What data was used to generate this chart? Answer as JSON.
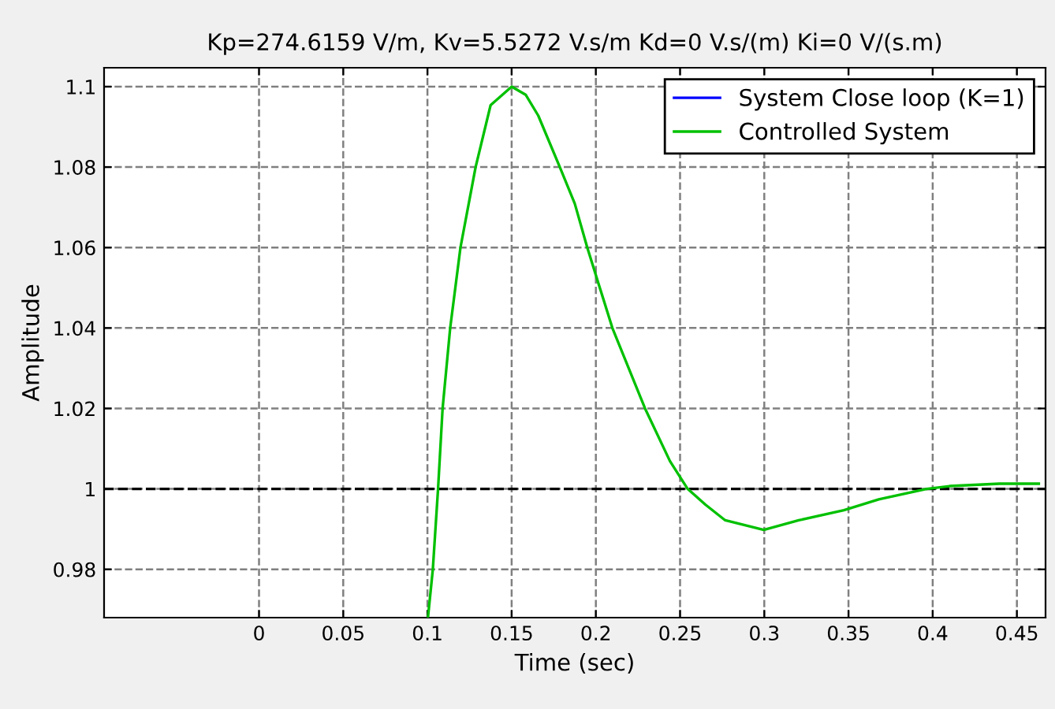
{
  "chart_data": {
    "type": "line",
    "title": "Kp=274.6159 V/m, Kv=5.5272 V.s/m Kd=0 V.s/(m) Ki=0 V/(s.m)",
    "xlabel": "Time (sec)",
    "ylabel": "Amplitude",
    "xlim": [
      -0.092,
      0.467
    ],
    "ylim": [
      0.968,
      1.1047
    ],
    "xticks": [
      0,
      0.05,
      0.1,
      0.15,
      0.2,
      0.25,
      0.3,
      0.35,
      0.4,
      0.45
    ],
    "yticks": [
      0.98,
      1,
      1.02,
      1.04,
      1.06,
      1.08,
      1.1
    ],
    "grid": true,
    "legend": "top right",
    "marker": "none",
    "line_style": "solid",
    "ref_lines": [
      {
        "axis": "y",
        "value": 1,
        "color": "#000000",
        "line_style": "dashed"
      }
    ],
    "x": [
      0.1003,
      0.1032,
      0.1063,
      0.109,
      0.1135,
      0.1196,
      0.1286,
      0.1375,
      0.15,
      0.1583,
      0.1658,
      0.1786,
      0.1875,
      0.1949,
      0.2098,
      0.2292,
      0.244,
      0.2545,
      0.265,
      0.2768,
      0.2997,
      0.3205,
      0.3473,
      0.368,
      0.3964,
      0.41,
      0.4396,
      0.463
    ],
    "series": [
      {
        "name": "System Close loop (K=1)",
        "color": "#0000ff",
        "values": [
          null,
          null,
          null,
          null,
          null,
          null,
          null,
          null,
          null,
          null,
          null,
          null,
          null,
          null,
          null,
          null,
          null,
          null,
          null,
          null,
          null,
          null,
          null,
          null,
          null,
          null,
          null,
          null
        ]
      },
      {
        "name": "Controlled System",
        "color": "#00c000",
        "values": [
          0.968,
          0.98,
          1.0,
          1.02,
          1.04,
          1.06,
          1.08,
          1.0954,
          1.1,
          1.098,
          1.0928,
          1.08,
          1.0709,
          1.06,
          1.04,
          1.02,
          1.0069,
          1.0,
          0.9961,
          0.9922,
          0.9898,
          0.9922,
          0.9947,
          0.9974,
          1.0,
          1.0007,
          1.0013,
          1.0013
        ]
      }
    ]
  }
}
